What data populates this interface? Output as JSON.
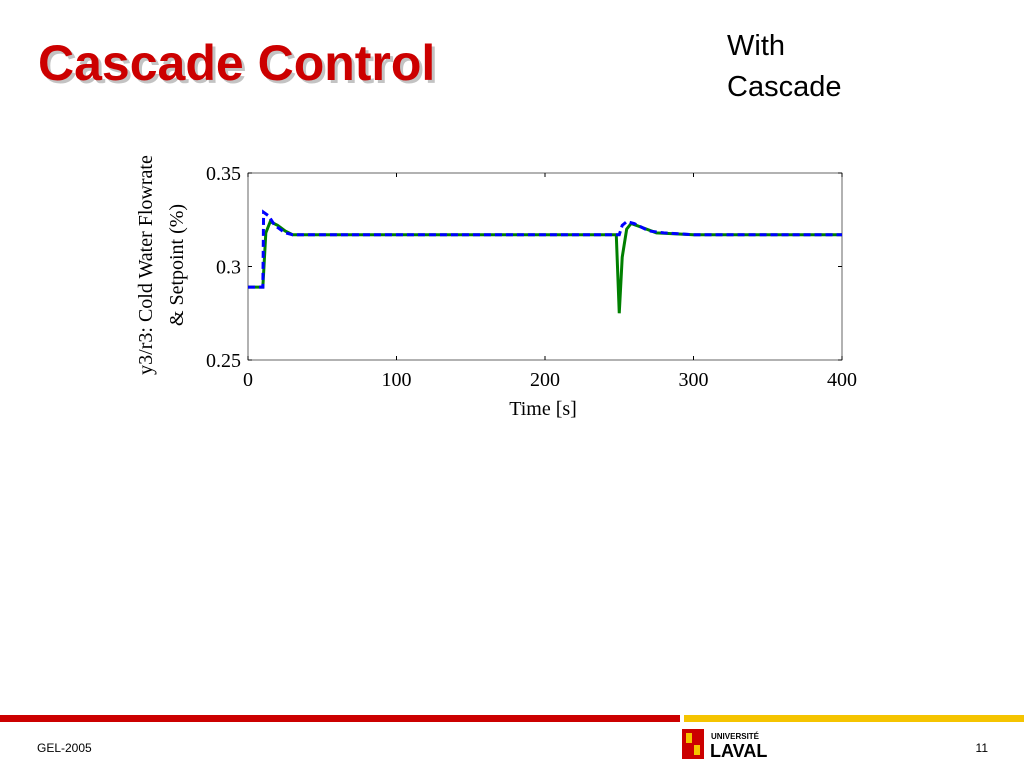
{
  "slide": {
    "title": "Cascade Control",
    "annotation": [
      "With",
      "Cascade"
    ],
    "footer": "GEL-2005",
    "page": "11",
    "logo": [
      "UNIVERSITÉ",
      "LAVAL"
    ]
  },
  "chart_data": {
    "type": "line",
    "xlabel": "Time [s]",
    "ylabel": [
      "y3/r3: Cold Water Flowrate",
      "& Setpoint (%)"
    ],
    "xlim": [
      0,
      400
    ],
    "xticks": [
      0,
      100,
      200,
      300,
      400
    ],
    "ylim": [
      0.25,
      0.35
    ],
    "yticks": [
      0.25,
      0.3,
      0.35
    ],
    "series": [
      {
        "color": "#008000",
        "dash": false,
        "x": [
          0,
          10,
          12,
          15,
          20,
          25,
          30,
          248,
          250,
          252,
          255,
          258,
          265,
          275,
          300,
          400
        ],
        "values": [
          0.289,
          0.289,
          0.318,
          0.324,
          0.322,
          0.319,
          0.317,
          0.317,
          0.275,
          0.305,
          0.32,
          0.323,
          0.321,
          0.318,
          0.317,
          0.317
        ]
      },
      {
        "color": "#0000ff",
        "dash": true,
        "x": [
          0,
          10,
          10.5,
          14,
          18,
          25,
          30,
          250,
          252,
          255,
          260,
          270,
          280,
          300,
          400
        ],
        "values": [
          0.289,
          0.289,
          0.329,
          0.327,
          0.322,
          0.318,
          0.317,
          0.317,
          0.322,
          0.324,
          0.323,
          0.319,
          0.318,
          0.317,
          0.317
        ]
      }
    ]
  }
}
